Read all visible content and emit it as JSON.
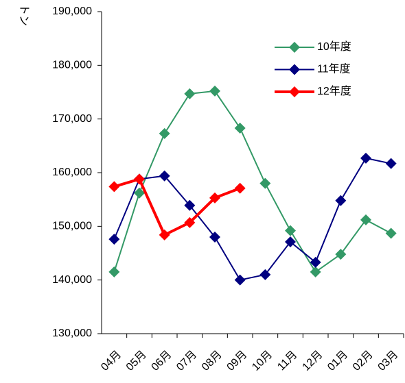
{
  "chart_data": {
    "type": "line",
    "y_label": "トン",
    "categories": [
      "04月",
      "05月",
      "06月",
      "07月",
      "08月",
      "09月",
      "10月",
      "11月",
      "12月",
      "01月",
      "02月",
      "03月"
    ],
    "series": [
      {
        "name": "10年度",
        "color": "#339966",
        "values": [
          141500,
          156200,
          167300,
          174700,
          175200,
          168300,
          158000,
          149200,
          141500,
          144800,
          151200,
          148700
        ]
      },
      {
        "name": "11年度",
        "color": "#000080",
        "values": [
          147600,
          158800,
          159400,
          153900,
          148000,
          140000,
          141000,
          147100,
          143300,
          154800,
          162700,
          161700
        ]
      },
      {
        "name": "12年度",
        "color": "#ff0000",
        "values": [
          157400,
          158800,
          148400,
          150700,
          155300,
          157100,
          null,
          null,
          null,
          null,
          null,
          null
        ]
      }
    ],
    "ylim": [
      130000,
      190000
    ],
    "yticks": [
      {
        "value": 130000,
        "label": "130,000"
      },
      {
        "value": 140000,
        "label": "140,000"
      },
      {
        "value": 150000,
        "label": "150,000"
      },
      {
        "value": 160000,
        "label": "160,000"
      },
      {
        "value": 170000,
        "label": "170,000"
      },
      {
        "value": 180000,
        "label": "180,000"
      },
      {
        "value": 190000,
        "label": "190,000"
      }
    ],
    "grid": false,
    "legend": "upper right"
  }
}
